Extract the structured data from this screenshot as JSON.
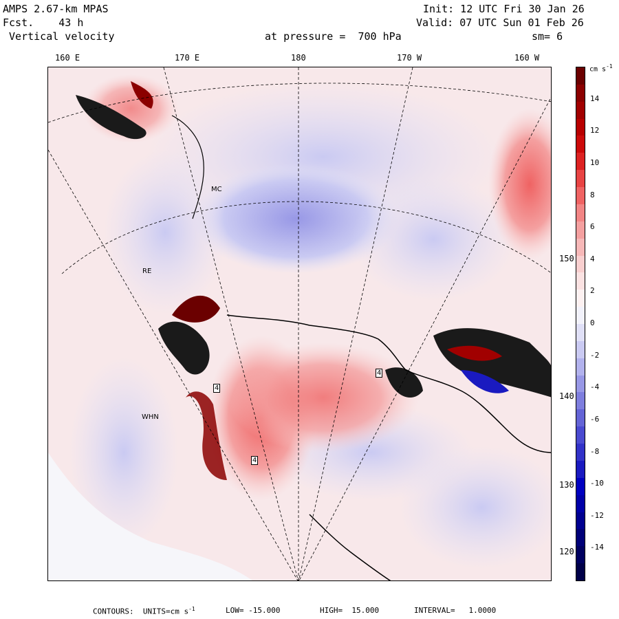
{
  "header": {
    "model": "AMPS 2.67-km MPAS",
    "forecast": "Fcst.    43 h",
    "field": " Vertical velocity",
    "init": "Init: 12 UTC Fri 30 Jan 26",
    "valid": "Valid: 07 UTC Sun 01 Feb 26",
    "pressure": "at pressure =  700 hPa",
    "smoothing": "sm= 6"
  },
  "map": {
    "lon_labels": [
      "160 E",
      "170 E",
      "180",
      "170 W",
      "160 W"
    ],
    "lat_labels": [
      "150 W",
      "140 W",
      "130 W",
      "120 W"
    ],
    "stations": [
      "RE",
      "WHN",
      "MC"
    ],
    "contour_marker": "4"
  },
  "colorbar": {
    "units_label": "cm s",
    "units_exp": "-1",
    "tick_labels": [
      "14",
      "12",
      "10",
      "8",
      "6",
      "4",
      "2",
      "0",
      "-2",
      "-4",
      "-6",
      "-8",
      "-10",
      "-12",
      "-14"
    ],
    "colors": [
      "#6b0000",
      "#8b0000",
      "#a10000",
      "#b80000",
      "#cc0a0a",
      "#dd2222",
      "#e84444",
      "#ef6363",
      "#f28585",
      "#f4a0a0",
      "#f7b8b8",
      "#f9cfcf",
      "#fbe2e2",
      "#fdf1f1",
      "#f2f2fb",
      "#e0e0f7",
      "#cacaf2",
      "#b2b2ed",
      "#9898e6",
      "#7e7ede",
      "#6464d6",
      "#4a4ad0",
      "#3232c8",
      "#1a1ac0",
      "#0000c0",
      "#0000a8",
      "#000090",
      "#000078",
      "#000060",
      "#000048"
    ]
  },
  "footer": {
    "contours": "CONTOURS:  UNITS=cm s",
    "units_exp": "-1",
    "low": "LOW= -15.000",
    "high": "HIGH=  15.000",
    "interval": "INTERVAL=   1.0000"
  }
}
